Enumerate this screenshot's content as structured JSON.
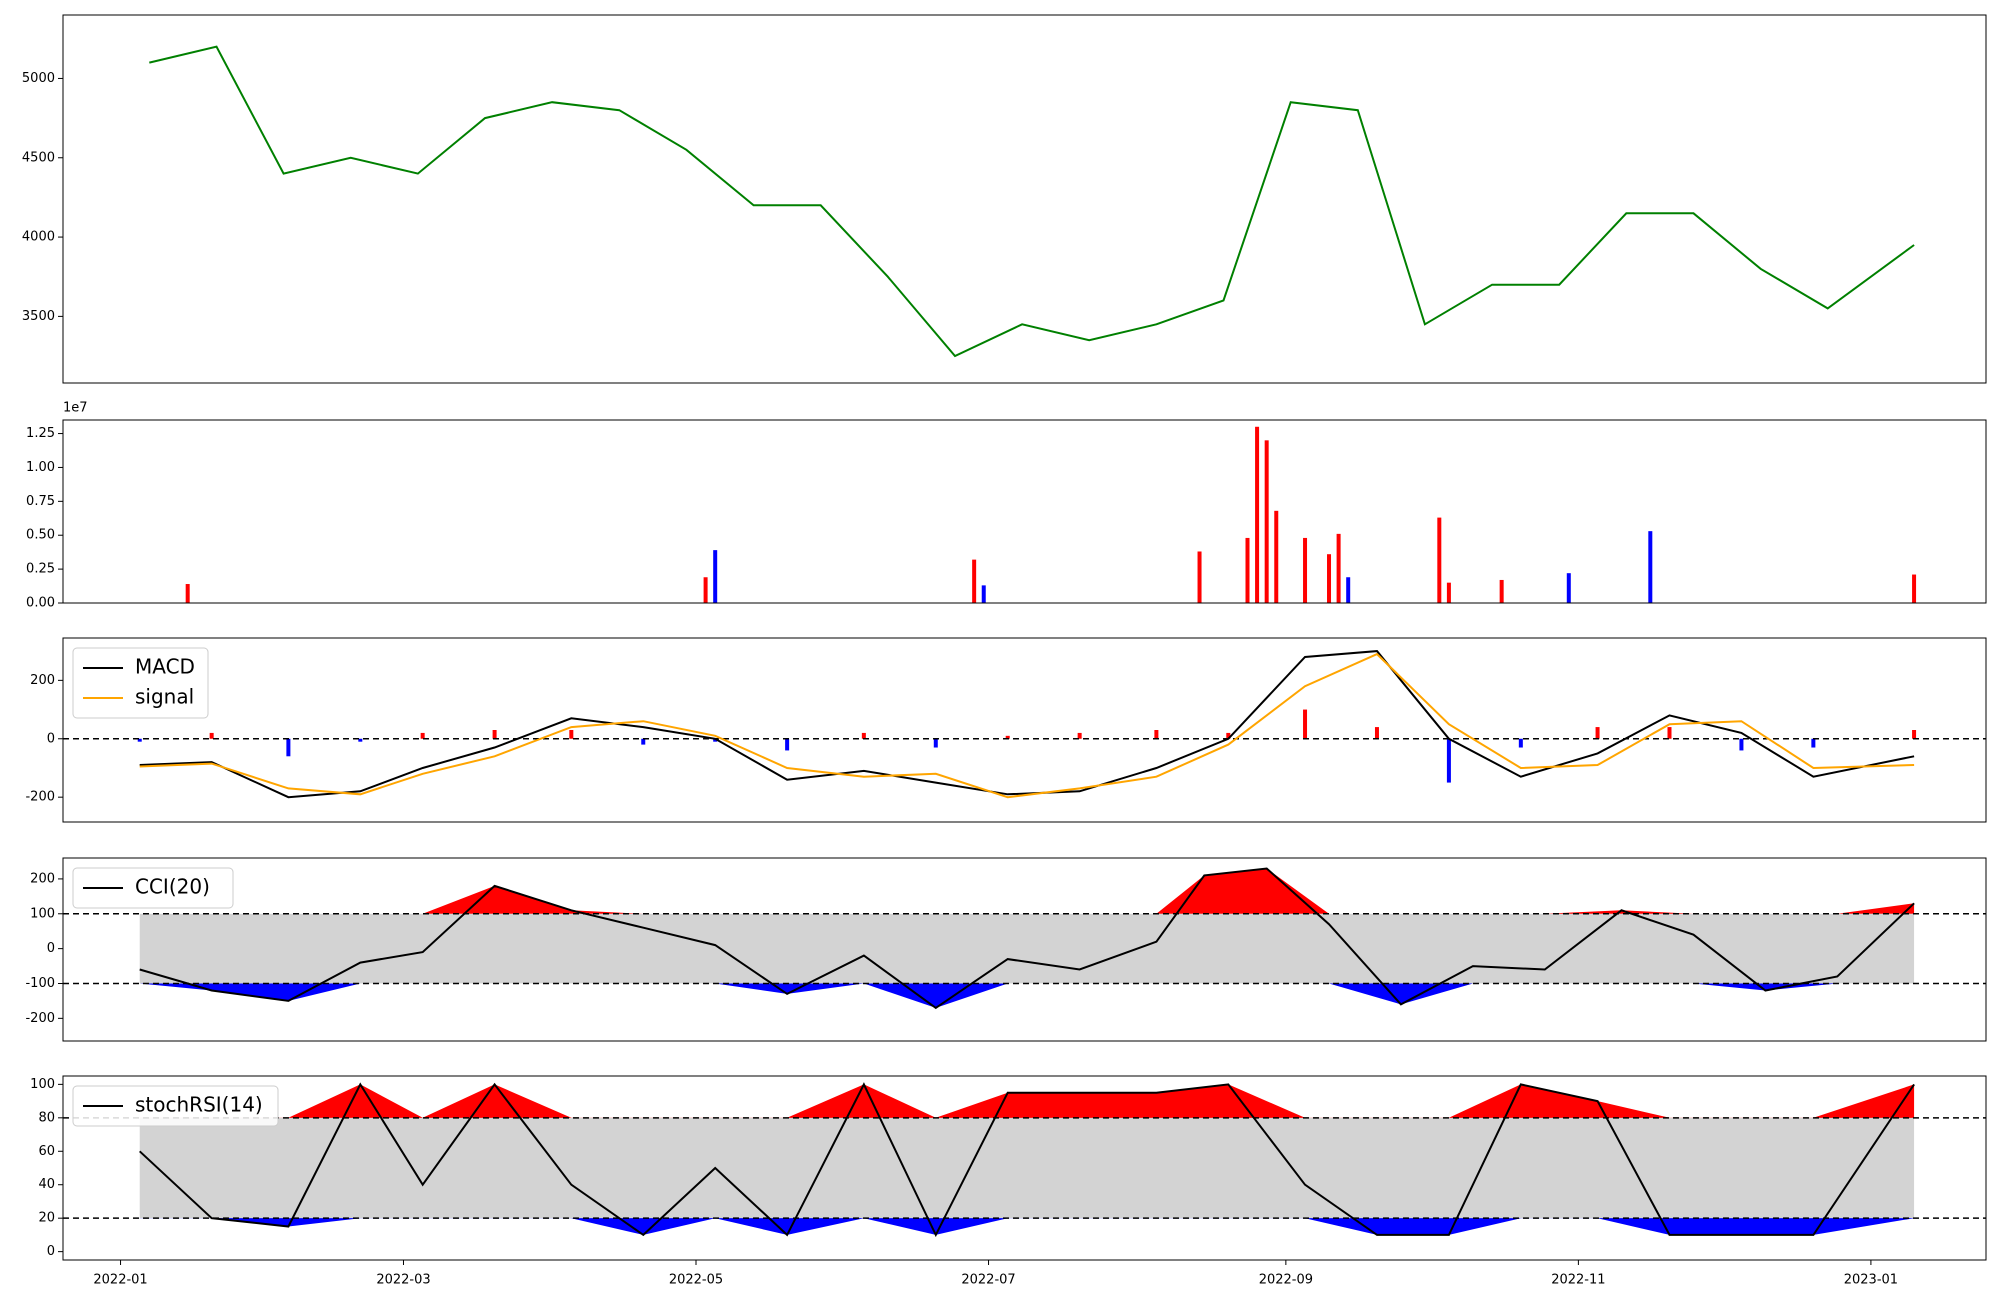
{
  "chart_data": [
    {
      "id": "price",
      "type": "line",
      "title": "",
      "x": [
        "2022-01-07",
        "2022-01-21",
        "2022-02-04",
        "2022-02-18",
        "2022-03-04",
        "2022-03-18",
        "2022-04-01",
        "2022-04-15",
        "2022-04-29",
        "2022-05-13",
        "2022-05-27",
        "2022-06-10",
        "2022-06-24",
        "2022-07-08",
        "2022-07-22",
        "2022-08-05",
        "2022-08-19",
        "2022-09-02",
        "2022-09-16",
        "2022-09-30",
        "2022-10-14",
        "2022-10-28",
        "2022-11-11",
        "2022-11-25",
        "2022-12-09",
        "2022-12-23",
        "2023-01-10"
      ],
      "series": [
        {
          "values": [
            5100,
            5200,
            4400,
            4500,
            4400,
            4750,
            4850,
            4800,
            4550,
            4200,
            4200,
            3750,
            3250,
            3450,
            3350,
            3450,
            3600,
            4850,
            4800,
            3450,
            3700,
            3700,
            4150,
            4150,
            3800,
            3550,
            3950
          ],
          "color": "#008000"
        }
      ],
      "yticks": [
        3500,
        4000,
        4500,
        5000
      ],
      "ylim": [
        3080,
        5400
      ]
    },
    {
      "id": "volume",
      "type": "bar",
      "x": [
        "2022-01-15",
        "2022-05-03",
        "2022-05-05",
        "2022-06-28",
        "2022-06-30",
        "2022-08-14",
        "2022-08-24",
        "2022-08-26",
        "2022-08-28",
        "2022-08-30",
        "2022-09-05",
        "2022-09-10",
        "2022-09-12",
        "2022-09-14",
        "2022-10-03",
        "2022-10-05",
        "2022-10-16",
        "2022-10-30",
        "2022-11-16",
        "2023-01-10"
      ],
      "values": [
        1400000.0,
        1900000.0,
        3900000.0,
        3200000.0,
        1300000.0,
        3800000.0,
        4800000.0,
        13000000.0,
        12000000.0,
        6800000.0,
        4800000.0,
        3600000.0,
        5100000.0,
        1900000.0,
        6300000.0,
        1500000.0,
        1700000.0,
        2200000.0,
        5300000.0,
        2100000.0
      ],
      "colors": [
        "#ff0000",
        "#ff0000",
        "#0000ff",
        "#ff0000",
        "#0000ff",
        "#ff0000",
        "#ff0000",
        "#ff0000",
        "#ff0000",
        "#ff0000",
        "#ff0000",
        "#ff0000",
        "#ff0000",
        "#0000ff",
        "#ff0000",
        "#ff0000",
        "#ff0000",
        "#0000ff",
        "#0000ff",
        "#ff0000"
      ],
      "yticks": [
        "0.00",
        "0.25",
        "0.50",
        "0.75",
        "1.00",
        "1.25"
      ],
      "ylim": [
        0,
        13500000.0
      ],
      "offset_label": "1e7"
    },
    {
      "id": "macd",
      "type": "line",
      "x": [
        "2022-01-05",
        "2022-01-20",
        "2022-02-05",
        "2022-02-20",
        "2022-03-05",
        "2022-03-20",
        "2022-04-05",
        "2022-04-20",
        "2022-05-05",
        "2022-05-20",
        "2022-06-05",
        "2022-06-20",
        "2022-07-05",
        "2022-07-20",
        "2022-08-05",
        "2022-08-20",
        "2022-09-05",
        "2022-09-20",
        "2022-10-05",
        "2022-10-20",
        "2022-11-05",
        "2022-11-20",
        "2022-12-05",
        "2022-12-20",
        "2023-01-10"
      ],
      "series": [
        {
          "name": "MACD",
          "values": [
            -90,
            -80,
            -200,
            -180,
            -100,
            -30,
            70,
            40,
            0,
            -140,
            -110,
            -150,
            -190,
            -180,
            -100,
            0,
            280,
            300,
            0,
            -130,
            -50,
            80,
            20,
            -130,
            -60
          ],
          "color": "#000000"
        },
        {
          "name": "signal",
          "values": [
            -95,
            -85,
            -170,
            -190,
            -120,
            -60,
            40,
            60,
            10,
            -100,
            -130,
            -120,
            -200,
            -170,
            -130,
            -20,
            180,
            290,
            50,
            -100,
            -90,
            50,
            60,
            -100,
            -90
          ],
          "color": "#ffa500"
        }
      ],
      "histogram": [
        -10,
        20,
        -60,
        -10,
        20,
        30,
        30,
        -20,
        -10,
        -40,
        20,
        -30,
        10,
        20,
        30,
        20,
        100,
        40,
        -150,
        -30,
        40,
        40,
        -40,
        -30,
        30
      ],
      "yticks": [
        -200,
        0,
        200
      ],
      "ylim": [
        -285,
        345
      ],
      "hline": 0
    },
    {
      "id": "cci",
      "type": "area",
      "x": [
        "2022-01-05",
        "2022-01-20",
        "2022-02-05",
        "2022-02-20",
        "2022-03-05",
        "2022-03-20",
        "2022-04-05",
        "2022-04-20",
        "2022-05-05",
        "2022-05-20",
        "2022-06-05",
        "2022-06-20",
        "2022-07-05",
        "2022-07-20",
        "2022-08-05",
        "2022-08-15",
        "2022-08-28",
        "2022-09-10",
        "2022-09-25",
        "2022-10-10",
        "2022-10-25",
        "2022-11-10",
        "2022-11-25",
        "2022-12-10",
        "2022-12-25",
        "2023-01-10"
      ],
      "series": [
        {
          "name": "CCI(20)",
          "values": [
            -60,
            -120,
            -150,
            -40,
            -10,
            180,
            110,
            60,
            10,
            -130,
            -20,
            -170,
            -30,
            -60,
            20,
            210,
            230,
            70,
            -160,
            -50,
            -60,
            110,
            40,
            -120,
            -80,
            130
          ],
          "color": "#000000"
        }
      ],
      "upper": 100,
      "lower": -100,
      "yticks": [
        -200,
        -100,
        0,
        100,
        200
      ],
      "ylim": [
        -265,
        260
      ]
    },
    {
      "id": "stochrsi",
      "type": "area",
      "x": [
        "2022-01-05",
        "2022-01-20",
        "2022-02-05",
        "2022-02-20",
        "2022-03-05",
        "2022-03-20",
        "2022-04-05",
        "2022-04-20",
        "2022-05-05",
        "2022-05-20",
        "2022-06-05",
        "2022-06-20",
        "2022-07-05",
        "2022-07-20",
        "2022-08-05",
        "2022-08-20",
        "2022-09-05",
        "2022-09-20",
        "2022-10-05",
        "2022-10-20",
        "2022-11-05",
        "2022-11-20",
        "2022-12-05",
        "2022-12-20",
        "2023-01-10"
      ],
      "series": [
        {
          "name": "stochRSI(14)",
          "values": [
            60,
            20,
            15,
            100,
            40,
            100,
            40,
            10,
            50,
            10,
            100,
            10,
            95,
            95,
            95,
            100,
            40,
            10,
            10,
            100,
            90,
            10,
            10,
            10,
            100
          ],
          "color": "#000000"
        }
      ],
      "upper": 80,
      "lower": 20,
      "yticks": [
        0,
        20,
        40,
        60,
        80,
        100
      ],
      "ylim": [
        -5,
        105
      ]
    }
  ],
  "xaxis": {
    "start": "2021-12-20",
    "end": "2023-01-25",
    "ticks": [
      "2022-01",
      "2022-03",
      "2022-05",
      "2022-07",
      "2022-09",
      "2022-11",
      "2023-01"
    ]
  },
  "legends": {
    "macd": [
      "MACD",
      "signal"
    ],
    "cci": [
      "CCI(20)"
    ],
    "stochrsi": [
      "stochRSI(14)"
    ]
  },
  "colors": {
    "price": "#008000",
    "up": "#ff0000",
    "down": "#0000ff",
    "signal": "#ffa500",
    "band": "#d3d3d3"
  }
}
